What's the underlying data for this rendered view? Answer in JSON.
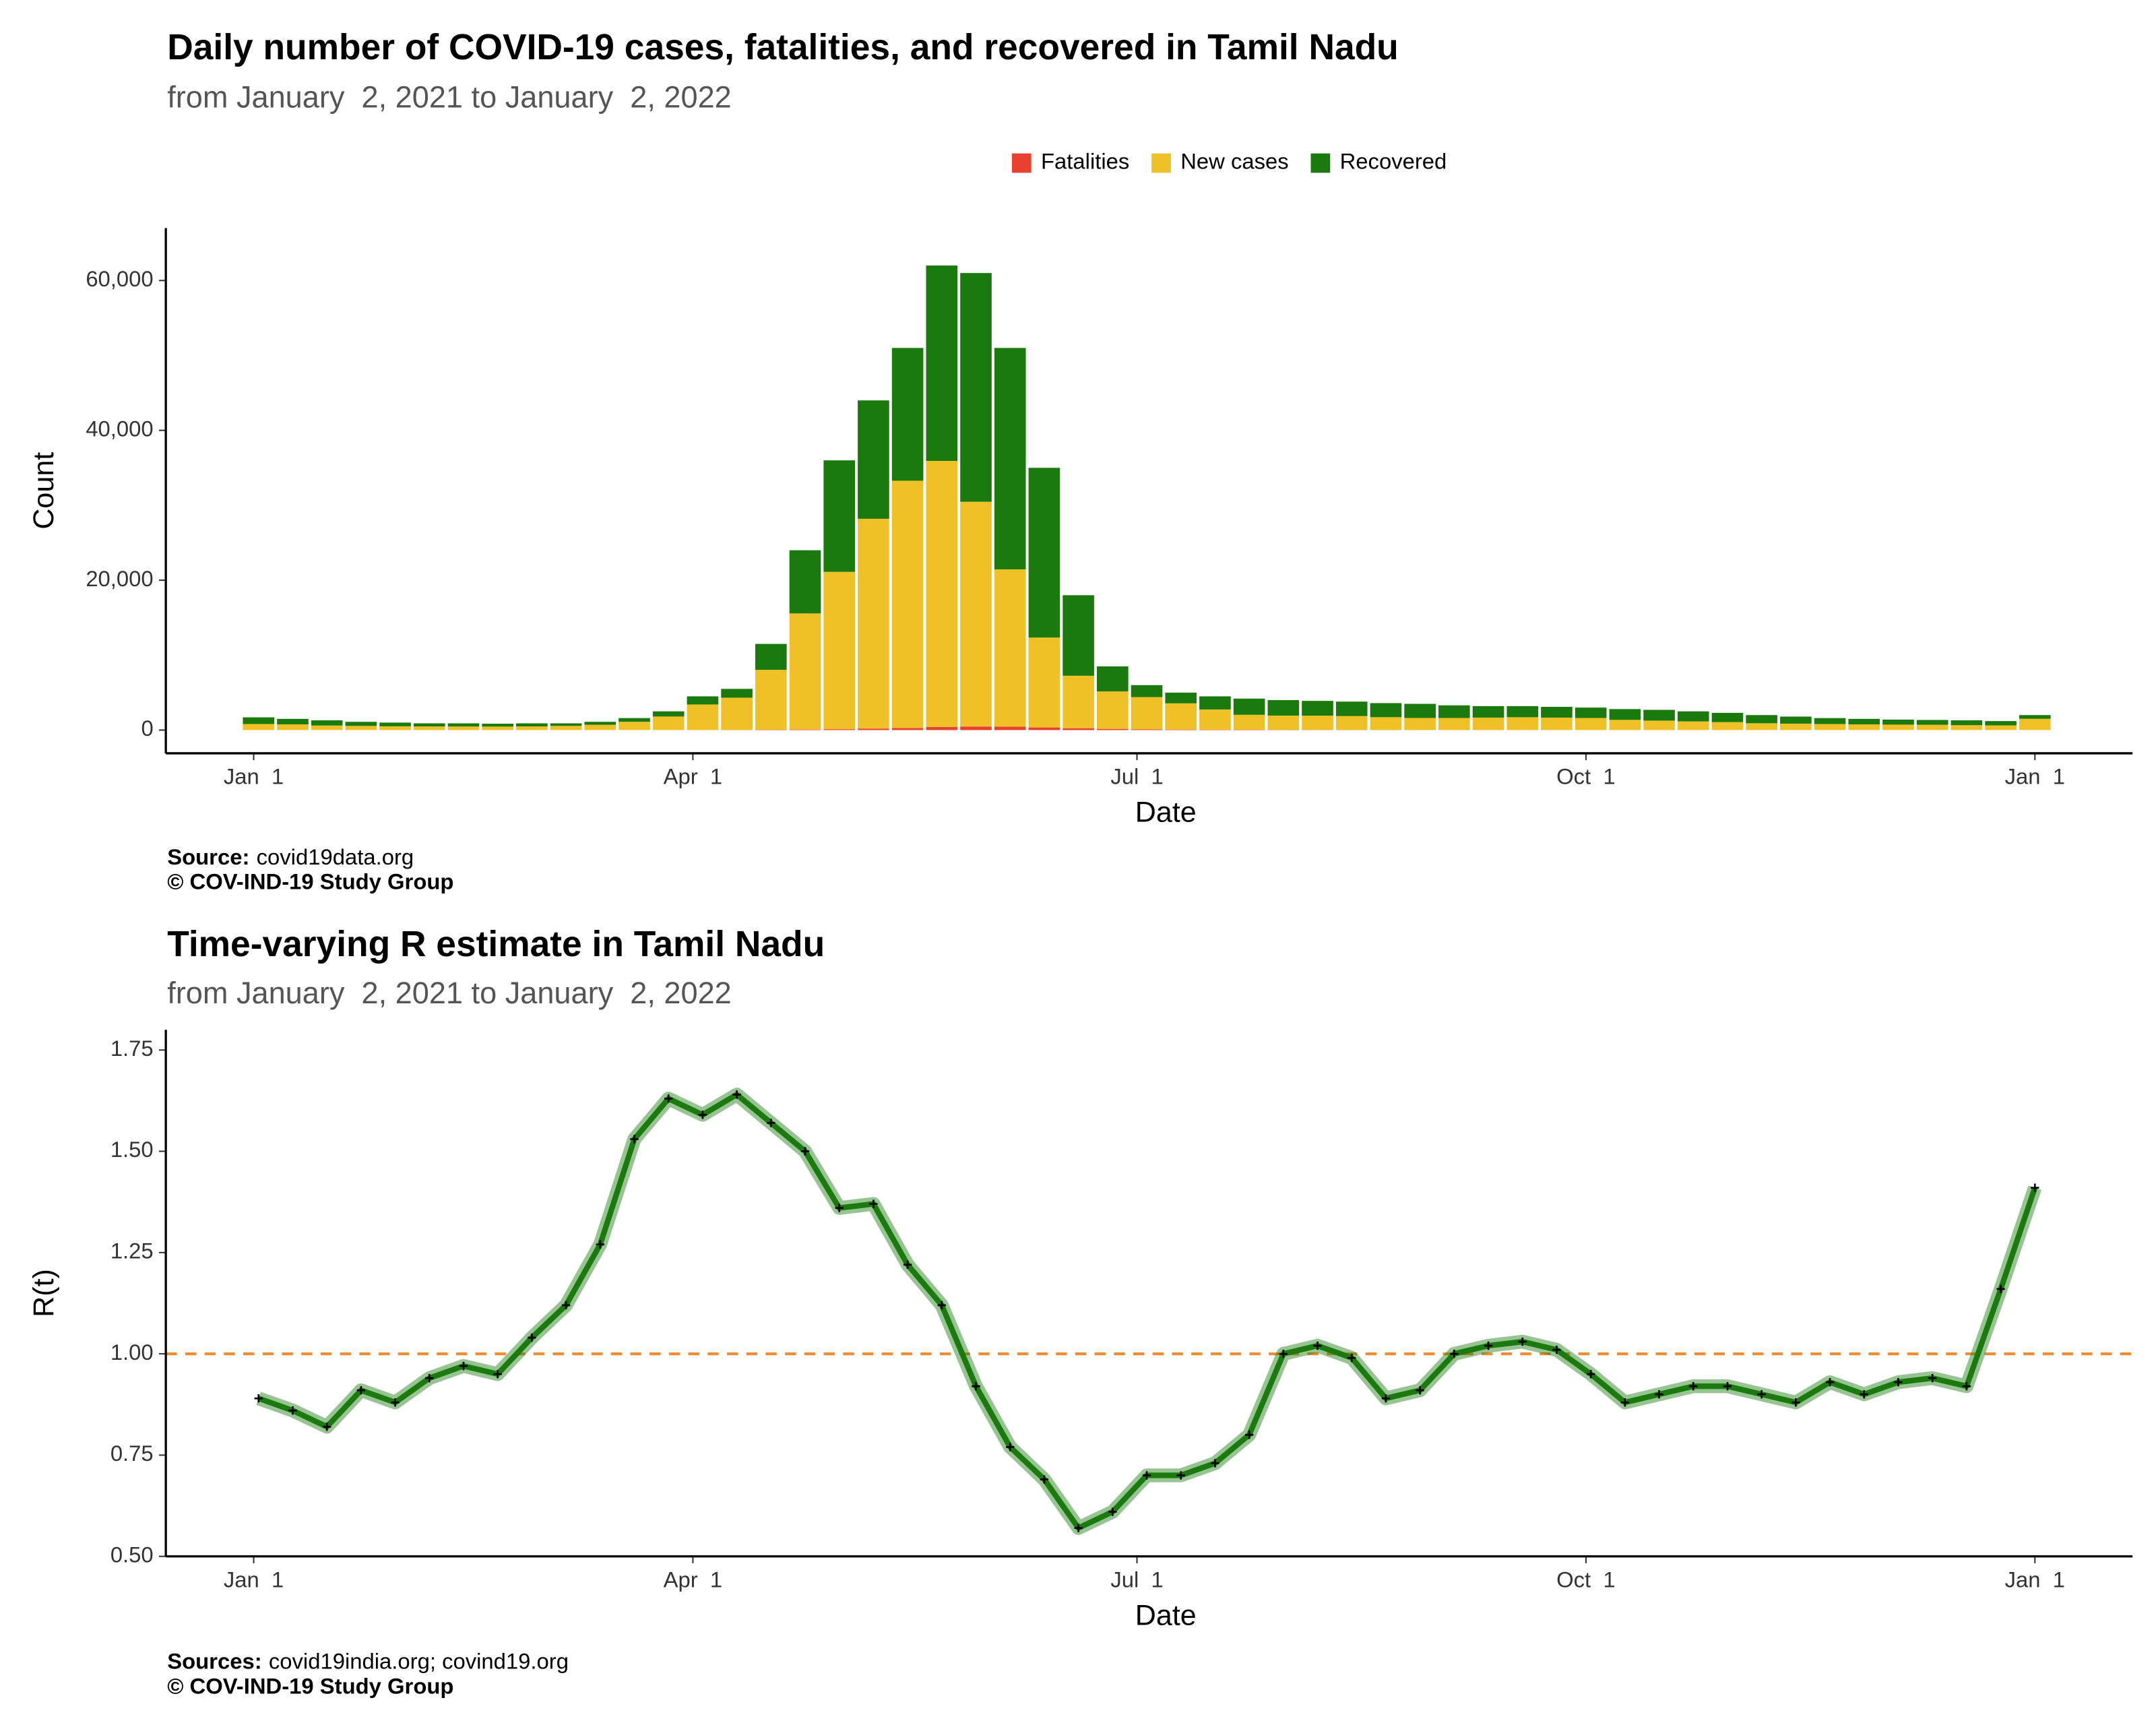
{
  "chart_data": [
    {
      "type": "bar",
      "stacked": true,
      "title": "Daily number of COVID-19 cases, fatalities, and recovered in Tamil Nadu",
      "subtitle": "from January  2, 2021 to January  2, 2022",
      "x_label": "Date",
      "y_label": "Count",
      "source_label": "Source:",
      "source": "covid19data.org",
      "copyright": "© COV-IND-19 Study Group",
      "legend": "top",
      "x": [
        "2021-01-02",
        "2021-01-09",
        "2021-01-16",
        "2021-01-23",
        "2021-01-30",
        "2021-02-06",
        "2021-02-13",
        "2021-02-20",
        "2021-02-27",
        "2021-03-06",
        "2021-03-13",
        "2021-03-20",
        "2021-03-27",
        "2021-04-03",
        "2021-04-10",
        "2021-04-17",
        "2021-04-24",
        "2021-05-01",
        "2021-05-08",
        "2021-05-15",
        "2021-05-22",
        "2021-05-29",
        "2021-06-05",
        "2021-06-12",
        "2021-06-19",
        "2021-06-26",
        "2021-07-03",
        "2021-07-10",
        "2021-07-17",
        "2021-07-24",
        "2021-07-31",
        "2021-08-07",
        "2021-08-14",
        "2021-08-21",
        "2021-08-28",
        "2021-09-04",
        "2021-09-11",
        "2021-09-18",
        "2021-09-25",
        "2021-10-02",
        "2021-10-09",
        "2021-10-16",
        "2021-10-23",
        "2021-10-30",
        "2021-11-06",
        "2021-11-13",
        "2021-11-20",
        "2021-11-27",
        "2021-12-04",
        "2021-12-11",
        "2021-12-18",
        "2021-12-25",
        "2022-01-01"
      ],
      "series": [
        {
          "name": "Fatalities",
          "color": "#e8412f",
          "values": [
            10,
            9,
            8,
            6,
            5,
            4,
            4,
            3,
            4,
            5,
            6,
            8,
            12,
            18,
            25,
            40,
            70,
            120,
            200,
            280,
            420,
            470,
            450,
            350,
            250,
            160,
            100,
            70,
            50,
            40,
            35,
            30,
            25,
            22,
            20,
            18,
            17,
            16,
            15,
            15,
            14,
            13,
            12,
            10,
            10,
            9,
            9,
            8,
            8,
            8,
            8,
            8,
            8
          ]
        },
        {
          "name": "New cases",
          "color": "#f0c027",
          "values": [
            800,
            750,
            600,
            550,
            500,
            480,
            470,
            460,
            480,
            550,
            700,
            1100,
            1800,
            3400,
            4300,
            8000,
            15500,
            21000,
            28000,
            33000,
            35500,
            30000,
            21000,
            12000,
            7000,
            5000,
            4300,
            3500,
            2700,
            2000,
            1900,
            1900,
            1850,
            1700,
            1600,
            1600,
            1650,
            1700,
            1650,
            1600,
            1350,
            1250,
            1150,
            1050,
            900,
            850,
            800,
            750,
            720,
            700,
            650,
            620,
            1500
          ]
        },
        {
          "name": "Recovered",
          "color": "#1a7a0e",
          "values": [
            890,
            741,
            692,
            544,
            495,
            416,
            426,
            387,
            416,
            345,
            394,
            492,
            688,
            1082,
            1175,
            3460,
            8430,
            14880,
            15800,
            17720,
            26080,
            30530,
            29550,
            22650,
            10750,
            3340,
            1600,
            1430,
            1750,
            2160,
            2065,
            1970,
            1925,
            1878,
            1880,
            1682,
            1533,
            1484,
            1435,
            1385,
            1436,
            1437,
            1338,
            1240,
            1090,
            941,
            791,
            742,
            672,
            642,
            642,
            572,
            492
          ]
        }
      ],
      "xlim": [
        "2020-12-14",
        "2022-01-21"
      ],
      "xticks": [
        {
          "value": "2021-01-01",
          "label": "Jan  1"
        },
        {
          "value": "2021-04-01",
          "label": "Apr  1"
        },
        {
          "value": "2021-07-01",
          "label": "Jul  1"
        },
        {
          "value": "2021-10-01",
          "label": "Oct  1"
        },
        {
          "value": "2022-01-01",
          "label": "Jan  1"
        }
      ],
      "ylim": [
        -3100,
        67000
      ],
      "yticks": [
        0,
        {
          "value": 20000,
          "label": "20,000"
        },
        {
          "value": 40000,
          "label": "40,000"
        },
        {
          "value": 60000,
          "label": "60,000"
        }
      ]
    },
    {
      "type": "line",
      "title": "Time-varying R estimate in Tamil Nadu",
      "subtitle": "from January  2, 2021 to January  2, 2022",
      "x_label": "Date",
      "y_label": "R(t)",
      "source_label": "Sources:",
      "source": "covid19india.org; covind19.org",
      "copyright": "© COV-IND-19 Study Group",
      "hline": 1,
      "hline_color": "#f08a2e",
      "x": [
        "2021-01-02",
        "2021-01-09",
        "2021-01-16",
        "2021-01-23",
        "2021-01-30",
        "2021-02-06",
        "2021-02-13",
        "2021-02-20",
        "2021-02-27",
        "2021-03-06",
        "2021-03-13",
        "2021-03-20",
        "2021-03-27",
        "2021-04-03",
        "2021-04-10",
        "2021-04-17",
        "2021-04-24",
        "2021-05-01",
        "2021-05-08",
        "2021-05-15",
        "2021-05-22",
        "2021-05-29",
        "2021-06-05",
        "2021-06-12",
        "2021-06-19",
        "2021-06-26",
        "2021-07-03",
        "2021-07-10",
        "2021-07-17",
        "2021-07-24",
        "2021-07-31",
        "2021-08-07",
        "2021-08-14",
        "2021-08-21",
        "2021-08-28",
        "2021-09-04",
        "2021-09-11",
        "2021-09-18",
        "2021-09-25",
        "2021-10-02",
        "2021-10-09",
        "2021-10-16",
        "2021-10-23",
        "2021-10-30",
        "2021-11-06",
        "2021-11-13",
        "2021-11-20",
        "2021-11-27",
        "2021-12-04",
        "2021-12-11",
        "2021-12-18",
        "2021-12-25",
        "2022-01-01"
      ],
      "series": [
        {
          "color": "#1a7a0e",
          "values": [
            0.89,
            0.86,
            0.82,
            0.91,
            0.88,
            0.94,
            0.97,
            0.95,
            1.04,
            1.12,
            1.27,
            1.53,
            1.63,
            1.59,
            1.64,
            1.57,
            1.5,
            1.36,
            1.37,
            1.22,
            1.12,
            0.92,
            0.77,
            0.69,
            0.57,
            0.61,
            0.7,
            0.7,
            0.73,
            0.8,
            1.0,
            1.02,
            0.99,
            0.89,
            0.91,
            1.0,
            1.02,
            1.03,
            1.01,
            0.95,
            0.88,
            0.9,
            0.92,
            0.92,
            0.9,
            0.88,
            0.93,
            0.9,
            0.93,
            0.94,
            0.92,
            1.16,
            1.41
          ]
        }
      ],
      "xlim": [
        "2020-12-14",
        "2022-01-21"
      ],
      "xticks": [
        {
          "value": "2021-01-01",
          "label": "Jan  1"
        },
        {
          "value": "2021-04-01",
          "label": "Apr  1"
        },
        {
          "value": "2021-07-01",
          "label": "Jul  1"
        },
        {
          "value": "2021-10-01",
          "label": "Oct  1"
        },
        {
          "value": "2022-01-01",
          "label": "Jan  1"
        }
      ],
      "ylim": [
        0.5,
        1.8
      ],
      "yticks": [
        {
          "value": 0.5,
          "label": "0.50"
        },
        0.75,
        {
          "value": 1,
          "label": "1.00"
        },
        1.25,
        {
          "value": 1.5,
          "label": "1.50"
        },
        1.75
      ]
    }
  ]
}
